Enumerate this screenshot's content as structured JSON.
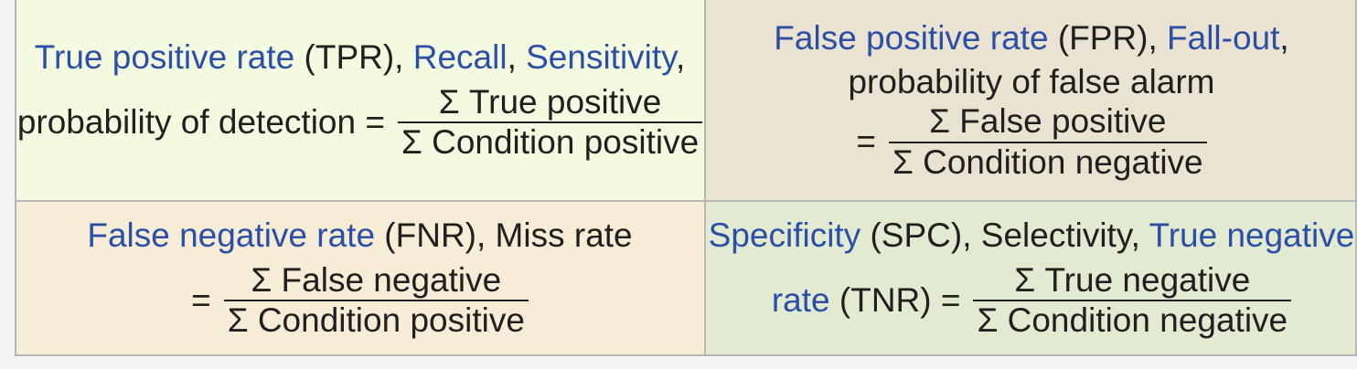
{
  "tpr": {
    "term1": "True positive rate",
    "abbr1": " (TPR), ",
    "term2": "Recall",
    "sep1": ", ",
    "term3": "Sensitivity",
    "sep2": ",",
    "prefix": "probability of detection =",
    "numerator": "Σ True positive",
    "denominator": "Σ Condition positive"
  },
  "fpr": {
    "term1": "False positive rate",
    "abbr1": " (FPR), ",
    "term2": "Fall-out",
    "sep1": ",",
    "line2": "probability of false alarm",
    "prefix": "=",
    "numerator": "Σ False positive",
    "denominator": "Σ Condition negative"
  },
  "fnr": {
    "term1": "False negative rate",
    "abbr1": " (FNR), Miss rate",
    "prefix": "=",
    "numerator": "Σ False negative",
    "denominator": "Σ Condition positive"
  },
  "spc": {
    "term1": "Specificity",
    "abbr1": " (SPC), Selectivity, ",
    "term2": "True negative",
    "term3": "rate",
    "abbr2": " (TNR) =",
    "numerator": "Σ True negative",
    "denominator": "Σ Condition negative"
  },
  "colors": {
    "link": "#2b4ea6",
    "text": "#1f1f1f"
  }
}
